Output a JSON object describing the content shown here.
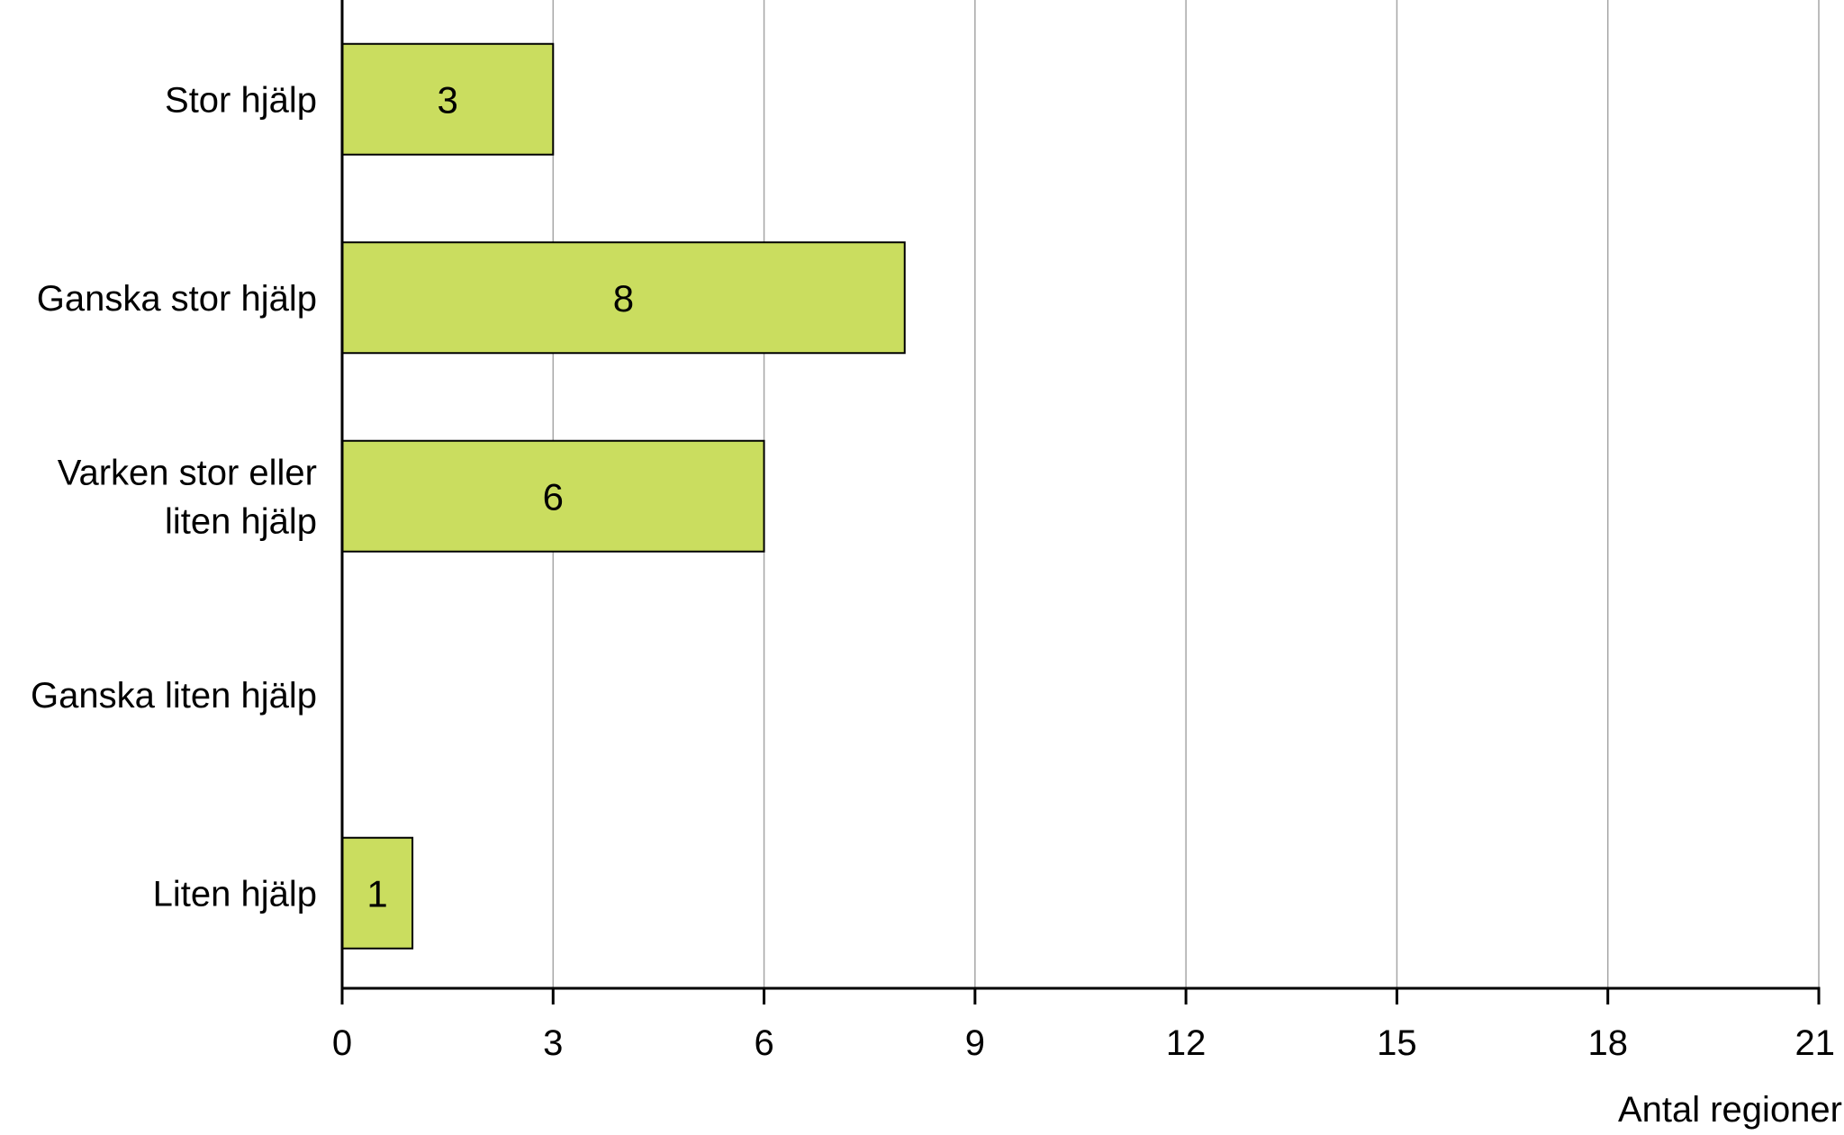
{
  "chart_data": {
    "type": "bar",
    "orientation": "horizontal",
    "categories": [
      [
        "Stor hjälp"
      ],
      [
        "Ganska stor hjälp"
      ],
      [
        "Varken stor eller",
        "liten hjälp"
      ],
      [
        "Ganska liten hjälp"
      ],
      [
        "Liten hjälp"
      ]
    ],
    "values": [
      3,
      8,
      6,
      null,
      1
    ],
    "data_labels": [
      "3",
      "8",
      "6",
      "",
      "1"
    ],
    "xlabel": "Antal regioner",
    "xlim": [
      0,
      21
    ],
    "xticks": [
      0,
      3,
      6,
      9,
      12,
      15,
      18,
      21
    ],
    "grid": "vertical",
    "bar_color": "#cadd5f",
    "bar_edge_color": "#000000",
    "grid_color": "#a6a6a6"
  }
}
